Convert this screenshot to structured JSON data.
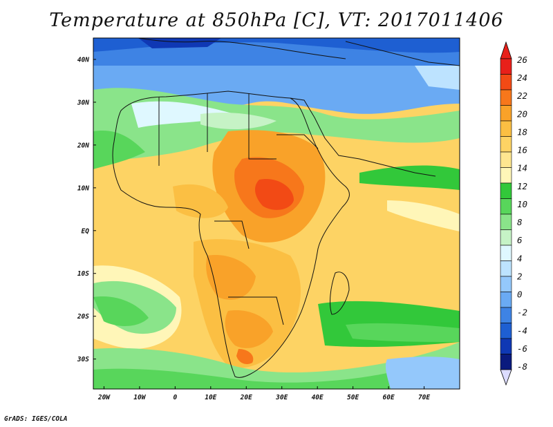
{
  "title": "Temperature at 850hPa [C], VT: 2017011406",
  "credit": "GrADS: IGES/COLA",
  "map": {
    "lon_range": [
      -23,
      80
    ],
    "lat_range": [
      -37,
      45
    ],
    "lon_ticks": [
      {
        "value": -20,
        "label": "20W"
      },
      {
        "value": -10,
        "label": "10W"
      },
      {
        "value": 0,
        "label": "0"
      },
      {
        "value": 10,
        "label": "10E"
      },
      {
        "value": 20,
        "label": "20E"
      },
      {
        "value": 30,
        "label": "30E"
      },
      {
        "value": 40,
        "label": "40E"
      },
      {
        "value": 50,
        "label": "50E"
      },
      {
        "value": 60,
        "label": "60E"
      },
      {
        "value": 70,
        "label": "70E"
      }
    ],
    "lat_ticks": [
      {
        "value": 40,
        "label": "40N"
      },
      {
        "value": 30,
        "label": "30N"
      },
      {
        "value": 20,
        "label": "20N"
      },
      {
        "value": 10,
        "label": "10N"
      },
      {
        "value": 0,
        "label": "EQ"
      },
      {
        "value": -10,
        "label": "10S"
      },
      {
        "value": -20,
        "label": "20S"
      },
      {
        "value": -30,
        "label": "30S"
      }
    ]
  },
  "colorbar": {
    "labels": [
      "26",
      "24",
      "22",
      "20",
      "18",
      "16",
      "14",
      "12",
      "10",
      "8",
      "6",
      "4",
      "2",
      "0",
      "-2",
      "-4",
      "-6",
      "-8"
    ],
    "colors": [
      "#e8201a",
      "#f24a15",
      "#f7771b",
      "#f9a229",
      "#fbbf43",
      "#fdd364",
      "#fee690",
      "#fff6b8",
      "#32c83a",
      "#58d65b",
      "#8ae48a",
      "#c6f3c6",
      "#dff8ff",
      "#bde3ff",
      "#94c8fb",
      "#6aaaf3",
      "#3e83e4",
      "#1e5fd2",
      "#0f38b4",
      "#0a1a7e"
    ],
    "top_color": "#e8201a",
    "bottom_color": "#dcdcff"
  }
}
